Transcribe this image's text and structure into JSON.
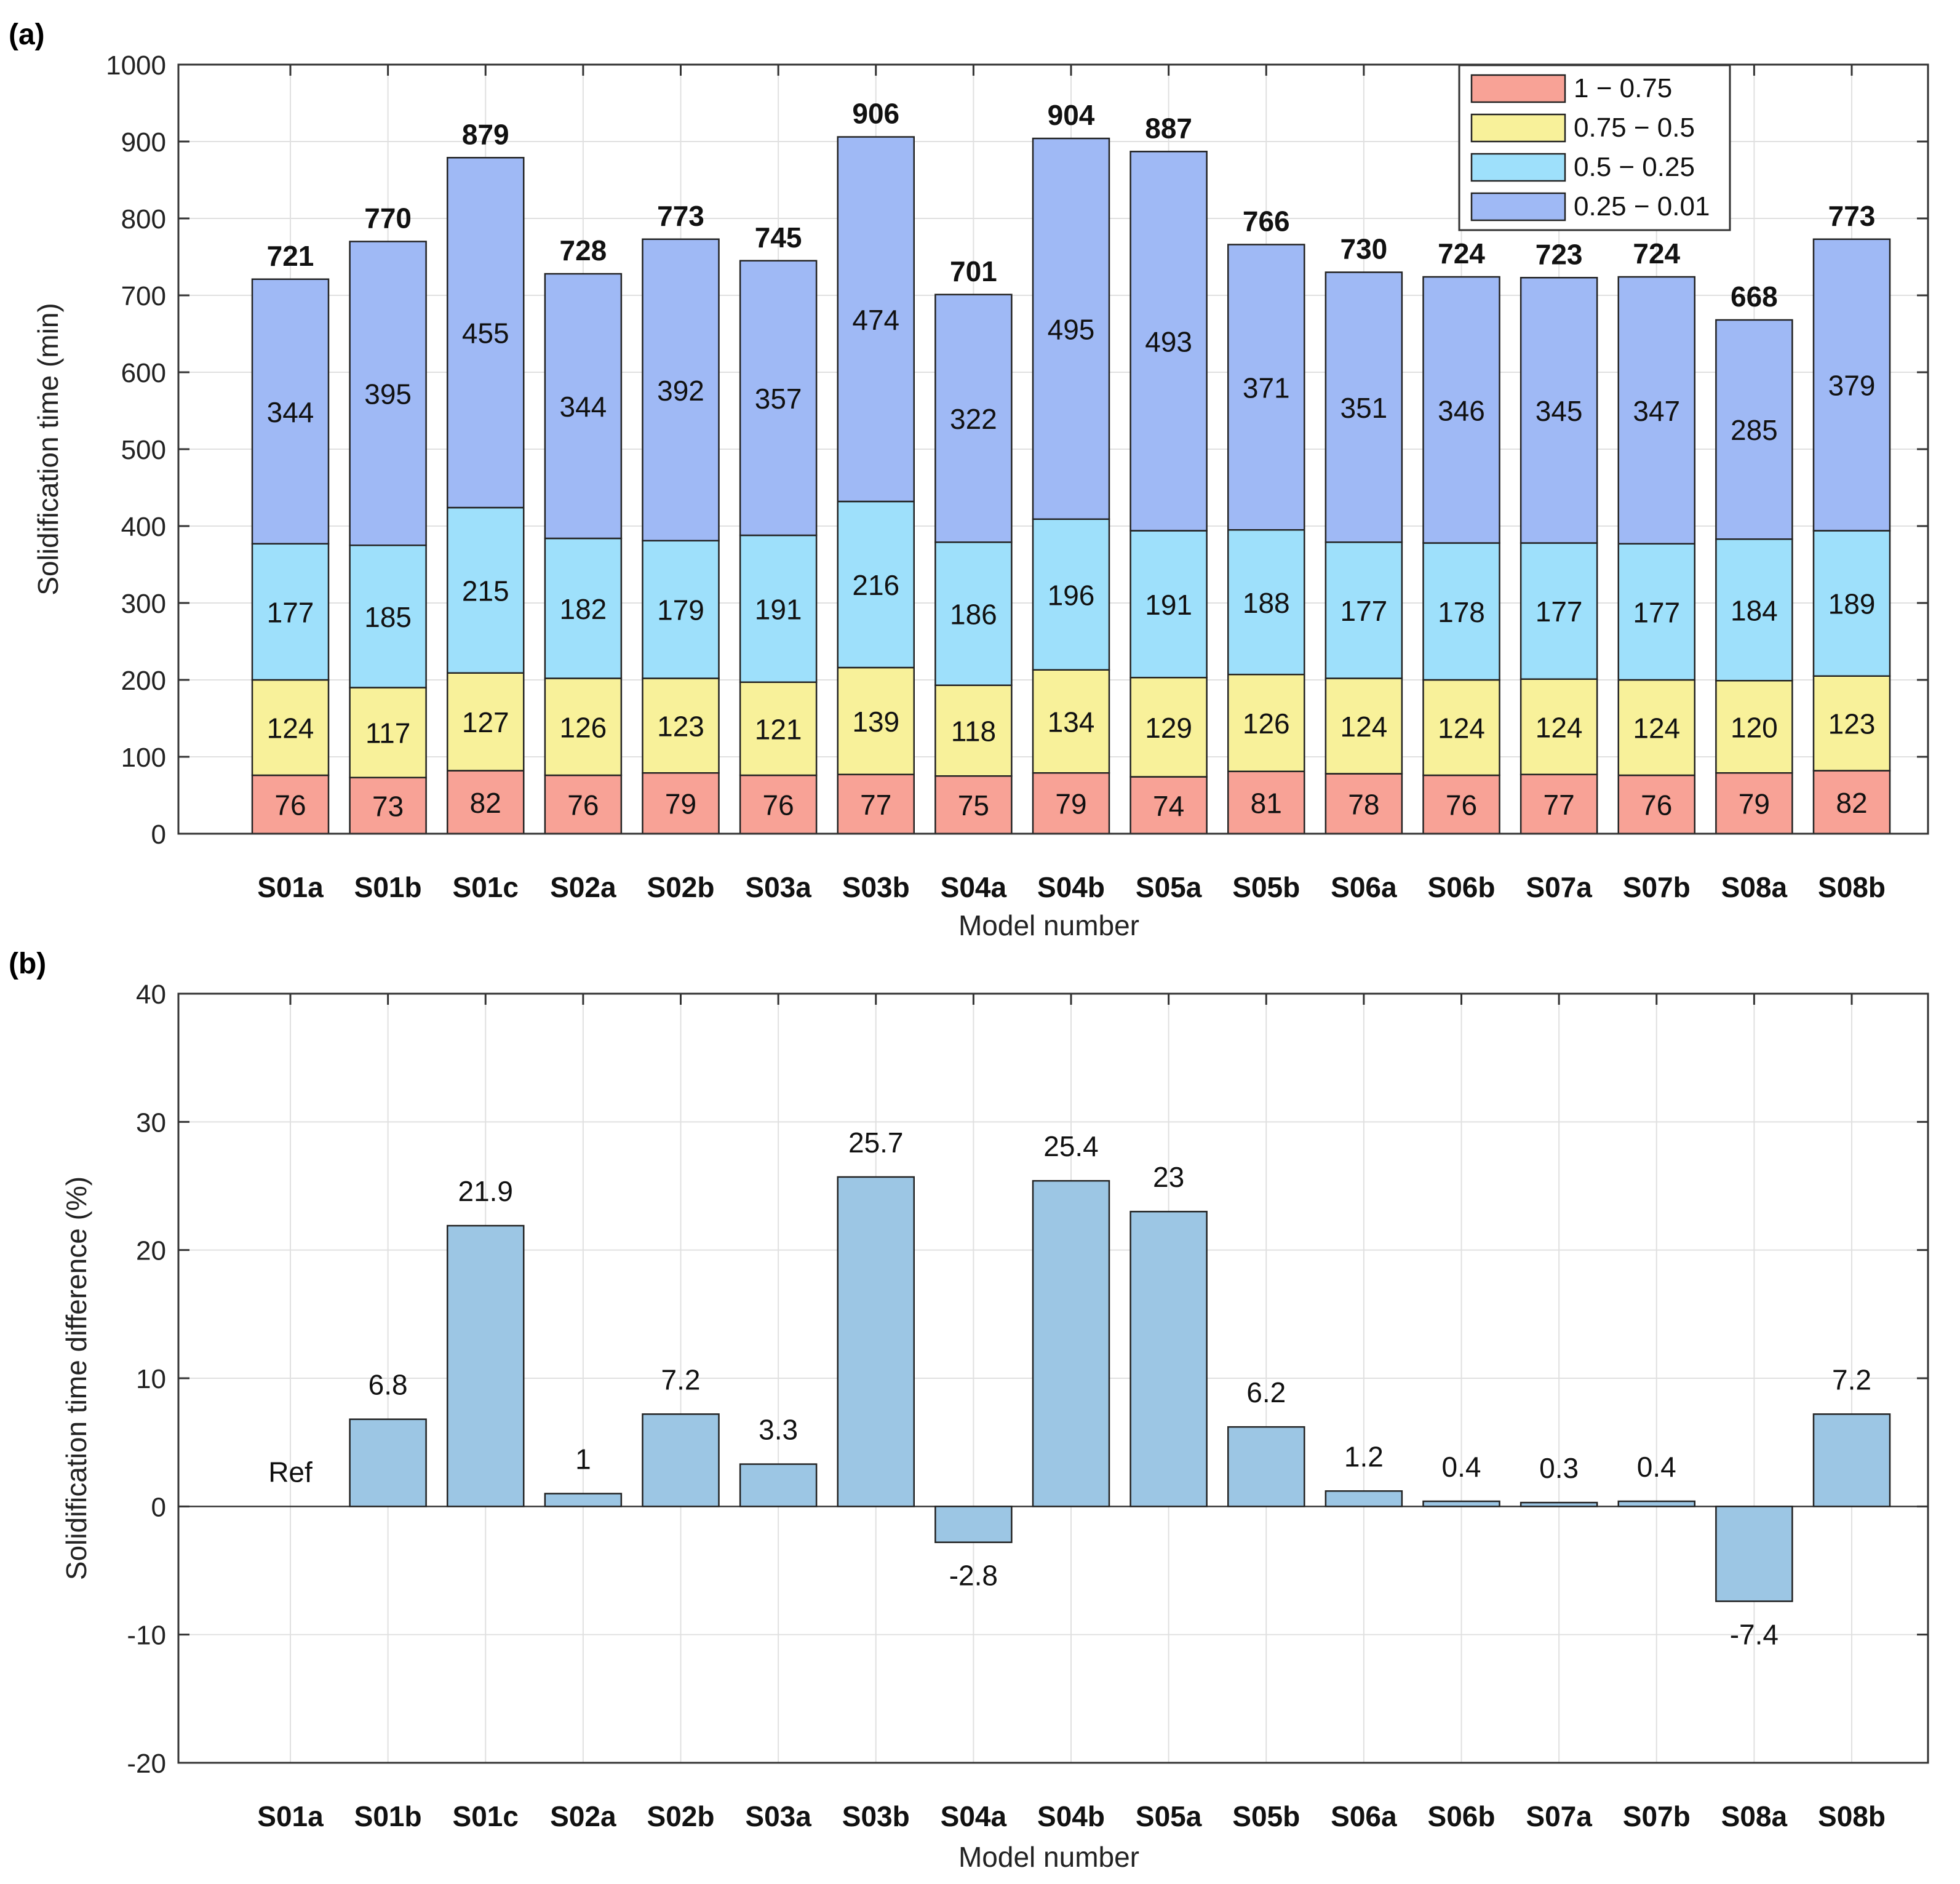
{
  "colors": {
    "c1": "#f8a296",
    "c2": "#f8f19a",
    "c3": "#9ee0fb",
    "c4": "#9fb9f5",
    "diff": "#9cc6e4",
    "edge": "#222222",
    "grid": "#e0e0e0"
  },
  "chart_data": [
    {
      "panel": "(a)",
      "type": "bar",
      "stacked": true,
      "xlabel": "Model number",
      "ylabel": "Solidification time (min)",
      "ylim": [
        0,
        1000
      ],
      "yticks": [
        0,
        100,
        200,
        300,
        400,
        500,
        600,
        700,
        800,
        900,
        1000
      ],
      "categories": [
        "S01a",
        "S01b",
        "S01c",
        "S02a",
        "S02b",
        "S03a",
        "S03b",
        "S04a",
        "S04b",
        "S05a",
        "S05b",
        "S06a",
        "S06b",
        "S07a",
        "S07b",
        "S08a",
        "S08b"
      ],
      "series": [
        {
          "name": "1 − 0.75",
          "color_key": "c1",
          "values": [
            76,
            73,
            82,
            76,
            79,
            76,
            77,
            75,
            79,
            74,
            81,
            78,
            76,
            77,
            76,
            79,
            82
          ]
        },
        {
          "name": "0.75 − 0.5",
          "color_key": "c2",
          "values": [
            124,
            117,
            127,
            126,
            123,
            121,
            139,
            118,
            134,
            129,
            126,
            124,
            124,
            124,
            124,
            120,
            123
          ]
        },
        {
          "name": "0.5 − 0.25",
          "color_key": "c3",
          "values": [
            177,
            185,
            215,
            182,
            179,
            191,
            216,
            186,
            196,
            191,
            188,
            177,
            178,
            177,
            177,
            184,
            189
          ]
        },
        {
          "name": "0.25 − 0.01",
          "color_key": "c4",
          "values": [
            344,
            395,
            455,
            344,
            392,
            357,
            474,
            322,
            495,
            493,
            371,
            351,
            346,
            345,
            347,
            285,
            379
          ]
        }
      ],
      "totals": [
        721,
        770,
        879,
        728,
        773,
        745,
        906,
        701,
        904,
        887,
        766,
        730,
        724,
        723,
        724,
        668,
        773
      ],
      "legend": "top-right",
      "grid": true
    },
    {
      "panel": "(b)",
      "type": "bar",
      "xlabel": "Model number",
      "ylabel": "Solidification time difference (%)",
      "ylim": [
        -20,
        40
      ],
      "yticks": [
        -20,
        -10,
        0,
        10,
        20,
        30,
        40
      ],
      "categories": [
        "S01a",
        "S01b",
        "S01c",
        "S02a",
        "S02b",
        "S03a",
        "S03b",
        "S04a",
        "S04b",
        "S05a",
        "S05b",
        "S06a",
        "S06b",
        "S07a",
        "S07b",
        "S08a",
        "S08b"
      ],
      "values": [
        0,
        6.8,
        21.9,
        1,
        7.2,
        3.3,
        25.7,
        -2.8,
        25.4,
        23,
        6.2,
        1.2,
        0.4,
        0.3,
        0.4,
        -7.4,
        7.2
      ],
      "labels": [
        "Ref",
        "6.8",
        "21.9",
        "1",
        "7.2",
        "3.3",
        "25.7",
        "-2.8",
        "25.4",
        "23",
        "6.2",
        "1.2",
        "0.4",
        "0.3",
        "0.4",
        "-7.4",
        "7.2"
      ],
      "grid": true
    }
  ]
}
